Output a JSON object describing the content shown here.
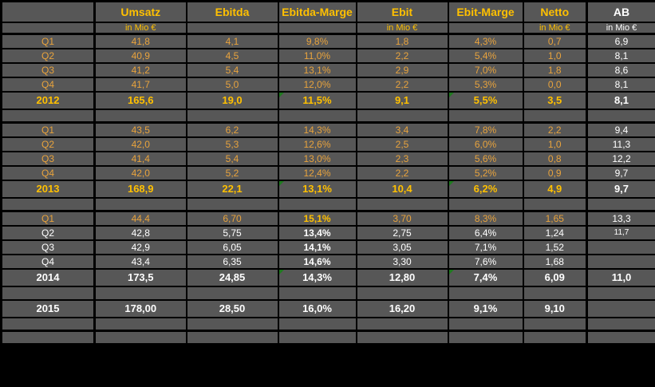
{
  "colors": {
    "orange": "#e8a33d",
    "orange_bold": "#ffc000",
    "white": "#ffffff",
    "cell_bg": "#575757",
    "grid": "#000000",
    "flag_green": "#1f7a1f",
    "page_bg": "#000000"
  },
  "table": {
    "columns": [
      {
        "label": "",
        "sub": "",
        "hc": "o",
        "sc": "o"
      },
      {
        "label": "Umsatz",
        "sub": "in Mio €",
        "hc": "o",
        "sc": "o"
      },
      {
        "label": "Ebitda",
        "sub": "",
        "hc": "o",
        "sc": "o"
      },
      {
        "label": "Ebitda-Marge",
        "sub": "",
        "hc": "o",
        "sc": "o"
      },
      {
        "label": "Ebit",
        "sub": "in Mio €",
        "hc": "o",
        "sc": "o"
      },
      {
        "label": "Ebit-Marge",
        "sub": "",
        "hc": "o",
        "sc": "o"
      },
      {
        "label": "Netto",
        "sub": "in Mio €",
        "hc": "o",
        "sc": "o"
      },
      {
        "label": "AB",
        "sub": "in Mio €",
        "hc": "w",
        "sc": "w"
      }
    ],
    "rows": [
      {
        "t": "q",
        "label": "Q1",
        "lc": "o",
        "cells": [
          {
            "v": "41,8",
            "c": "o"
          },
          {
            "v": "4,1",
            "c": "o"
          },
          {
            "v": "9,8%",
            "c": "o"
          },
          {
            "v": "1,8",
            "c": "o"
          },
          {
            "v": "4,3%",
            "c": "o"
          },
          {
            "v": "0,7",
            "c": "o"
          },
          {
            "v": "6,9",
            "c": "w"
          }
        ]
      },
      {
        "t": "q",
        "label": "Q2",
        "lc": "o",
        "cells": [
          {
            "v": "40,9",
            "c": "o"
          },
          {
            "v": "4,5",
            "c": "o"
          },
          {
            "v": "11,0%",
            "c": "o"
          },
          {
            "v": "2,2",
            "c": "o"
          },
          {
            "v": "5,4%",
            "c": "o"
          },
          {
            "v": "1,0",
            "c": "o"
          },
          {
            "v": "8,1",
            "c": "w"
          }
        ]
      },
      {
        "t": "q",
        "label": "Q3",
        "lc": "o",
        "cells": [
          {
            "v": "41,2",
            "c": "o"
          },
          {
            "v": "5,4",
            "c": "o"
          },
          {
            "v": "13,1%",
            "c": "o"
          },
          {
            "v": "2,9",
            "c": "o"
          },
          {
            "v": "7,0%",
            "c": "o"
          },
          {
            "v": "1,8",
            "c": "o"
          },
          {
            "v": "8,6",
            "c": "w"
          }
        ]
      },
      {
        "t": "q",
        "label": "Q4",
        "lc": "o",
        "cells": [
          {
            "v": "41,7",
            "c": "o"
          },
          {
            "v": "5,0",
            "c": "o"
          },
          {
            "v": "12,0%",
            "c": "o"
          },
          {
            "v": "2,2",
            "c": "o"
          },
          {
            "v": "5,3%",
            "c": "o"
          },
          {
            "v": "0,0",
            "c": "o"
          },
          {
            "v": "8,1",
            "c": "w"
          }
        ]
      },
      {
        "t": "y",
        "label": "2012",
        "lc": "o",
        "cells": [
          {
            "v": "165,6",
            "c": "o",
            "b": true
          },
          {
            "v": "19,0",
            "c": "o",
            "b": true
          },
          {
            "v": "11,5%",
            "c": "o",
            "b": true,
            "f": true
          },
          {
            "v": "9,1",
            "c": "o",
            "b": true
          },
          {
            "v": "5,5%",
            "c": "o",
            "b": true,
            "f": true
          },
          {
            "v": "3,5",
            "c": "o",
            "b": true
          },
          {
            "v": "8,1",
            "c": "w",
            "b": true
          }
        ]
      },
      {
        "t": "s",
        "thick": true
      },
      {
        "t": "q",
        "label": "Q1",
        "lc": "o",
        "cells": [
          {
            "v": "43,5",
            "c": "o"
          },
          {
            "v": "6,2",
            "c": "o"
          },
          {
            "v": "14,3%",
            "c": "o"
          },
          {
            "v": "3,4",
            "c": "o"
          },
          {
            "v": "7,8%",
            "c": "o"
          },
          {
            "v": "2,2",
            "c": "o"
          },
          {
            "v": "9,4",
            "c": "w"
          }
        ]
      },
      {
        "t": "q",
        "label": "Q2",
        "lc": "o",
        "cells": [
          {
            "v": "42,0",
            "c": "o"
          },
          {
            "v": "5,3",
            "c": "o"
          },
          {
            "v": "12,6%",
            "c": "o"
          },
          {
            "v": "2,5",
            "c": "o"
          },
          {
            "v": "6,0%",
            "c": "o"
          },
          {
            "v": "1,0",
            "c": "o"
          },
          {
            "v": "11,3",
            "c": "w"
          }
        ]
      },
      {
        "t": "q",
        "label": "Q3",
        "lc": "o",
        "cells": [
          {
            "v": "41,4",
            "c": "o"
          },
          {
            "v": "5,4",
            "c": "o"
          },
          {
            "v": "13,0%",
            "c": "o"
          },
          {
            "v": "2,3",
            "c": "o"
          },
          {
            "v": "5,6%",
            "c": "o"
          },
          {
            "v": "0,8",
            "c": "o"
          },
          {
            "v": "12,2",
            "c": "w"
          }
        ]
      },
      {
        "t": "q",
        "label": "Q4",
        "lc": "o",
        "cells": [
          {
            "v": "42,0",
            "c": "o"
          },
          {
            "v": "5,2",
            "c": "o"
          },
          {
            "v": "12,4%",
            "c": "o"
          },
          {
            "v": "2,2",
            "c": "o"
          },
          {
            "v": "5,2%",
            "c": "o"
          },
          {
            "v": "0,9",
            "c": "o"
          },
          {
            "v": "9,7",
            "c": "w"
          }
        ]
      },
      {
        "t": "y",
        "label": "2013",
        "lc": "o",
        "cells": [
          {
            "v": "168,9",
            "c": "o",
            "b": true
          },
          {
            "v": "22,1",
            "c": "o",
            "b": true
          },
          {
            "v": "13,1%",
            "c": "o",
            "b": true,
            "f": true
          },
          {
            "v": "10,4",
            "c": "o",
            "b": true
          },
          {
            "v": "6,2%",
            "c": "o",
            "b": true,
            "f": true
          },
          {
            "v": "4,9",
            "c": "o",
            "b": true
          },
          {
            "v": "9,7",
            "c": "w",
            "b": true
          }
        ]
      },
      {
        "t": "s",
        "thick": true
      },
      {
        "t": "q",
        "label": "Q1",
        "lc": "o",
        "cells": [
          {
            "v": "44,4",
            "c": "o"
          },
          {
            "v": "6,70",
            "c": "o"
          },
          {
            "v": "15,1%",
            "c": "o",
            "b": true
          },
          {
            "v": "3,70",
            "c": "o"
          },
          {
            "v": "8,3%",
            "c": "o"
          },
          {
            "v": "1,65",
            "c": "o"
          },
          {
            "v": "13,3",
            "c": "w"
          }
        ]
      },
      {
        "t": "q",
        "label": "Q2",
        "lc": "w",
        "cells": [
          {
            "v": "42,8",
            "c": "w"
          },
          {
            "v": "5,75",
            "c": "w"
          },
          {
            "v": "13,4%",
            "c": "w",
            "b": true
          },
          {
            "v": "2,75",
            "c": "w"
          },
          {
            "v": "6,4%",
            "c": "w"
          },
          {
            "v": "1,24",
            "c": "w"
          },
          {
            "v": "11,7",
            "c": "w",
            "s": true
          }
        ]
      },
      {
        "t": "q",
        "label": "Q3",
        "lc": "w",
        "cells": [
          {
            "v": "42,9",
            "c": "w"
          },
          {
            "v": "6,05",
            "c": "w"
          },
          {
            "v": "14,1%",
            "c": "w",
            "b": true
          },
          {
            "v": "3,05",
            "c": "w"
          },
          {
            "v": "7,1%",
            "c": "w"
          },
          {
            "v": "1,52",
            "c": "w"
          },
          {
            "v": "",
            "c": "w"
          }
        ]
      },
      {
        "t": "q",
        "label": "Q4",
        "lc": "w",
        "cells": [
          {
            "v": "43,4",
            "c": "w"
          },
          {
            "v": "6,35",
            "c": "w"
          },
          {
            "v": "14,6%",
            "c": "w",
            "b": true
          },
          {
            "v": "3,30",
            "c": "w"
          },
          {
            "v": "7,6%",
            "c": "w"
          },
          {
            "v": "1,68",
            "c": "w"
          },
          {
            "v": "",
            "c": "w"
          }
        ]
      },
      {
        "t": "y",
        "label": "2014",
        "lc": "w",
        "cells": [
          {
            "v": "173,5",
            "c": "w",
            "b": true
          },
          {
            "v": "24,85",
            "c": "w",
            "b": true
          },
          {
            "v": "14,3%",
            "c": "w",
            "b": true,
            "f": true
          },
          {
            "v": "12,80",
            "c": "w",
            "b": true
          },
          {
            "v": "7,4%",
            "c": "w",
            "b": true,
            "f": true
          },
          {
            "v": "6,09",
            "c": "w",
            "b": true
          },
          {
            "v": "11,0",
            "c": "w",
            "b": true
          }
        ]
      },
      {
        "t": "s"
      },
      {
        "t": "y",
        "label": "2015",
        "lc": "w",
        "cells": [
          {
            "v": "178,00",
            "c": "w",
            "b": true
          },
          {
            "v": "28,50",
            "c": "w",
            "b": true
          },
          {
            "v": "16,0%",
            "c": "w",
            "b": true
          },
          {
            "v": "16,20",
            "c": "w",
            "b": true
          },
          {
            "v": "9,1%",
            "c": "w",
            "b": true
          },
          {
            "v": "9,10",
            "c": "w",
            "b": true
          },
          {
            "v": "",
            "c": "w"
          }
        ]
      },
      {
        "t": "s",
        "thick": true
      },
      {
        "t": "s"
      }
    ]
  }
}
